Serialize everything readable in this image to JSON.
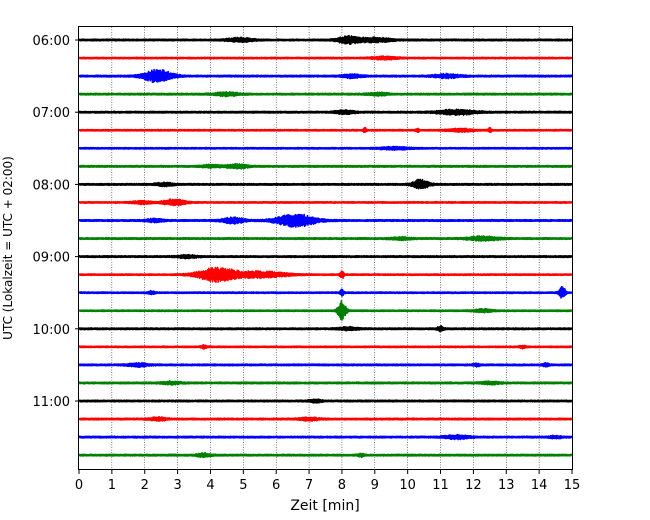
{
  "chart_data": {
    "type": "line",
    "title": "",
    "xlabel": "Zeit  [min]",
    "ylabel": "UTC (Lokalzeit = UTC + 02:00)",
    "xlim": [
      0,
      15
    ],
    "x_ticks": [
      0,
      1,
      2,
      3,
      4,
      5,
      6,
      7,
      8,
      9,
      10,
      11,
      12,
      13,
      14,
      15
    ],
    "y_tick_labels": [
      "06:00",
      "07:00",
      "08:00",
      "09:00",
      "10:00",
      "11:00"
    ],
    "grid": "vertical dotted at each minute",
    "trace_colors": [
      "#000000",
      "#ff0000",
      "#0000ff",
      "#008000"
    ],
    "series": [
      {
        "start": "06:00",
        "color": "#000000",
        "noise": 0.35,
        "events": [
          {
            "t": 4.9,
            "amp": 0.8,
            "width": 0.4
          },
          {
            "t": 8.2,
            "amp": 1.4,
            "width": 0.35
          },
          {
            "t": 9.0,
            "amp": 0.9,
            "width": 0.5
          }
        ]
      },
      {
        "start": "06:15",
        "color": "#ff0000",
        "noise": 0.3,
        "events": [
          {
            "t": 9.3,
            "amp": 0.6,
            "width": 0.4
          }
        ]
      },
      {
        "start": "06:30",
        "color": "#0000ff",
        "noise": 0.35,
        "events": [
          {
            "t": 2.4,
            "amp": 2.6,
            "width": 0.45
          },
          {
            "t": 11.2,
            "amp": 0.8,
            "width": 0.4
          },
          {
            "t": 8.3,
            "amp": 0.7,
            "width": 0.3
          }
        ]
      },
      {
        "start": "06:45",
        "color": "#008000",
        "noise": 0.35,
        "events": [
          {
            "t": 4.5,
            "amp": 0.7,
            "width": 0.4
          },
          {
            "t": 9.1,
            "amp": 0.6,
            "width": 0.3
          }
        ]
      },
      {
        "start": "07:00",
        "color": "#000000",
        "noise": 0.35,
        "events": [
          {
            "t": 11.5,
            "amp": 1.0,
            "width": 0.6
          },
          {
            "t": 8.1,
            "amp": 0.7,
            "width": 0.3
          }
        ]
      },
      {
        "start": "07:15",
        "color": "#ff0000",
        "noise": 0.3,
        "events": [
          {
            "t": 8.7,
            "amp": 1.1,
            "width": 0.05
          },
          {
            "t": 10.3,
            "amp": 0.8,
            "width": 0.05
          },
          {
            "t": 12.5,
            "amp": 0.9,
            "width": 0.05
          },
          {
            "t": 11.6,
            "amp": 0.6,
            "width": 0.4
          }
        ]
      },
      {
        "start": "07:30",
        "color": "#0000ff",
        "noise": 0.3,
        "events": [
          {
            "t": 9.6,
            "amp": 0.5,
            "width": 0.5
          }
        ]
      },
      {
        "start": "07:45",
        "color": "#008000",
        "noise": 0.35,
        "events": [
          {
            "t": 4.8,
            "amp": 0.8,
            "width": 0.35
          },
          {
            "t": 4.0,
            "amp": 0.5,
            "width": 0.3
          }
        ]
      },
      {
        "start": "08:00",
        "color": "#000000",
        "noise": 0.35,
        "events": [
          {
            "t": 10.4,
            "amp": 2.0,
            "width": 0.25
          },
          {
            "t": 2.6,
            "amp": 0.6,
            "width": 0.3
          }
        ]
      },
      {
        "start": "08:15",
        "color": "#ff0000",
        "noise": 0.3,
        "events": [
          {
            "t": 2.9,
            "amp": 1.2,
            "width": 0.35
          },
          {
            "t": 1.9,
            "amp": 0.6,
            "width": 0.3
          }
        ]
      },
      {
        "start": "08:30",
        "color": "#0000ff",
        "noise": 0.35,
        "events": [
          {
            "t": 6.6,
            "amp": 2.6,
            "width": 0.6
          },
          {
            "t": 4.7,
            "amp": 1.2,
            "width": 0.35
          },
          {
            "t": 2.3,
            "amp": 0.6,
            "width": 0.3
          }
        ]
      },
      {
        "start": "08:45",
        "color": "#008000",
        "noise": 0.35,
        "events": [
          {
            "t": 12.3,
            "amp": 0.8,
            "width": 0.5
          },
          {
            "t": 9.8,
            "amp": 0.5,
            "width": 0.3
          }
        ]
      },
      {
        "start": "09:00",
        "color": "#000000",
        "noise": 0.35,
        "events": [
          {
            "t": 3.3,
            "amp": 0.6,
            "width": 0.3
          }
        ]
      },
      {
        "start": "09:15",
        "color": "#ff0000",
        "noise": 0.3,
        "events": [
          {
            "t": 4.2,
            "amp": 2.8,
            "width": 0.6
          },
          {
            "t": 5.5,
            "amp": 1.3,
            "width": 0.8
          },
          {
            "t": 8.0,
            "amp": 1.6,
            "width": 0.06
          }
        ]
      },
      {
        "start": "09:30",
        "color": "#0000ff",
        "noise": 0.3,
        "events": [
          {
            "t": 14.7,
            "amp": 2.6,
            "width": 0.1
          },
          {
            "t": 2.2,
            "amp": 0.7,
            "width": 0.1
          },
          {
            "t": 8.0,
            "amp": 1.2,
            "width": 0.06
          }
        ]
      },
      {
        "start": "09:45",
        "color": "#008000",
        "noise": 0.3,
        "events": [
          {
            "t": 8.0,
            "amp": 4.2,
            "width": 0.12
          },
          {
            "t": 12.3,
            "amp": 0.6,
            "width": 0.3
          }
        ]
      },
      {
        "start": "10:00",
        "color": "#000000",
        "noise": 0.35,
        "events": [
          {
            "t": 11.0,
            "amp": 1.0,
            "width": 0.1
          },
          {
            "t": 8.2,
            "amp": 0.6,
            "width": 0.3
          }
        ]
      },
      {
        "start": "10:15",
        "color": "#ff0000",
        "noise": 0.3,
        "events": [
          {
            "t": 13.5,
            "amp": 0.6,
            "width": 0.1
          },
          {
            "t": 3.8,
            "amp": 0.6,
            "width": 0.1
          }
        ]
      },
      {
        "start": "10:30",
        "color": "#0000ff",
        "noise": 0.35,
        "events": [
          {
            "t": 1.8,
            "amp": 0.7,
            "width": 0.3
          },
          {
            "t": 12.1,
            "amp": 0.6,
            "width": 0.1
          },
          {
            "t": 14.2,
            "amp": 0.6,
            "width": 0.1
          }
        ]
      },
      {
        "start": "10:45",
        "color": "#008000",
        "noise": 0.35,
        "events": [
          {
            "t": 2.8,
            "amp": 0.5,
            "width": 0.3
          },
          {
            "t": 12.5,
            "amp": 0.5,
            "width": 0.3
          }
        ]
      },
      {
        "start": "11:00",
        "color": "#000000",
        "noise": 0.35,
        "events": [
          {
            "t": 7.2,
            "amp": 0.6,
            "width": 0.2
          }
        ]
      },
      {
        "start": "11:15",
        "color": "#ff0000",
        "noise": 0.35,
        "events": [
          {
            "t": 2.4,
            "amp": 0.6,
            "width": 0.3
          },
          {
            "t": 7.0,
            "amp": 0.6,
            "width": 0.3
          }
        ]
      },
      {
        "start": "11:30",
        "color": "#0000ff",
        "noise": 0.35,
        "events": [
          {
            "t": 11.5,
            "amp": 0.7,
            "width": 0.4
          },
          {
            "t": 14.5,
            "amp": 0.5,
            "width": 0.2
          }
        ]
      },
      {
        "start": "11:45",
        "color": "#008000",
        "noise": 0.35,
        "events": [
          {
            "t": 3.8,
            "amp": 0.7,
            "width": 0.2
          },
          {
            "t": 8.6,
            "amp": 0.6,
            "width": 0.1
          }
        ]
      }
    ]
  }
}
